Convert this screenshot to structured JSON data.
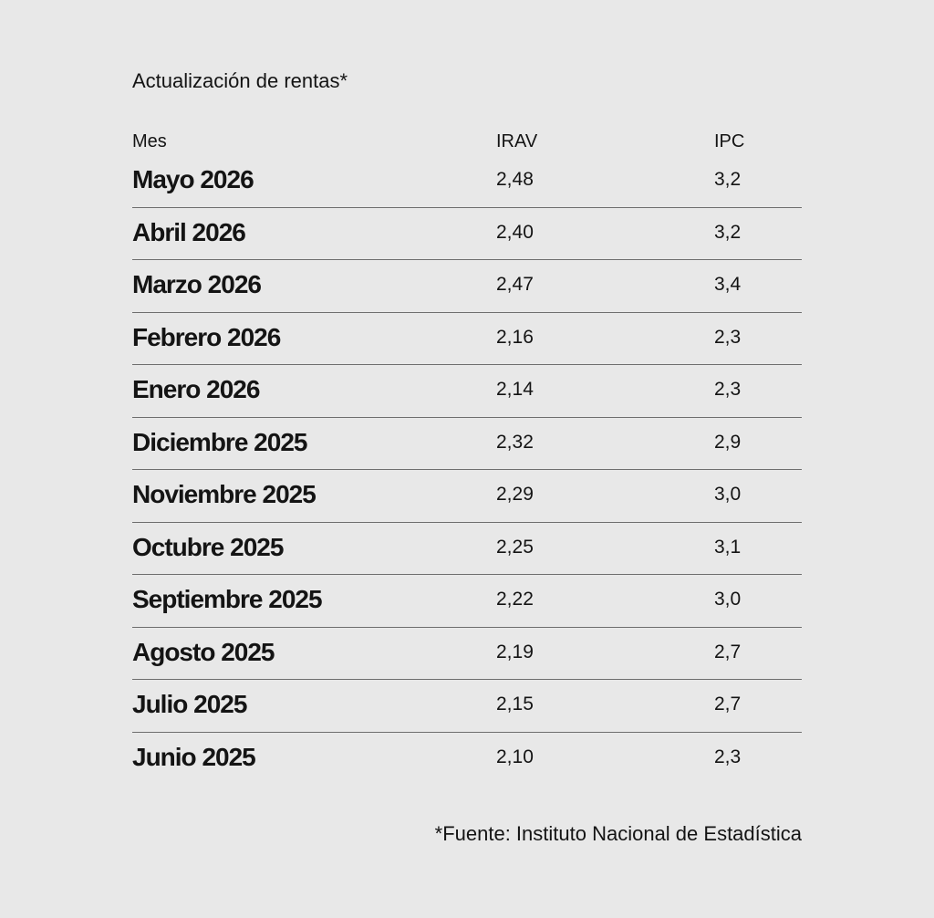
{
  "title": "Actualización de rentas*",
  "table": {
    "headers": {
      "month": "Mes",
      "irav": "IRAV",
      "ipc": "IPC"
    },
    "rows": [
      {
        "month": "Mayo 2026",
        "irav": "2,48",
        "ipc": "3,2"
      },
      {
        "month": "Abril 2026",
        "irav": "2,40",
        "ipc": "3,2"
      },
      {
        "month": "Marzo 2026",
        "irav": "2,47",
        "ipc": "3,4"
      },
      {
        "month": "Febrero 2026",
        "irav": "2,16",
        "ipc": "2,3"
      },
      {
        "month": "Enero 2026",
        "irav": "2,14",
        "ipc": "2,3"
      },
      {
        "month": "Diciembre 2025",
        "irav": "2,32",
        "ipc": "2,9"
      },
      {
        "month": "Noviembre 2025",
        "irav": "2,29",
        "ipc": "3,0"
      },
      {
        "month": "Octubre 2025",
        "irav": "2,25",
        "ipc": "3,1"
      },
      {
        "month": "Septiembre 2025",
        "irav": "2,22",
        "ipc": "3,0"
      },
      {
        "month": "Agosto 2025",
        "irav": "2,19",
        "ipc": "2,7"
      },
      {
        "month": "Julio 2025",
        "irav": "2,15",
        "ipc": "2,7"
      },
      {
        "month": "Junio 2025",
        "irav": "2,10",
        "ipc": "2,3"
      }
    ]
  },
  "source": "*Fuente: Instituto Nacional de Estadística",
  "colors": {
    "background": "#e8e8e8",
    "text": "#141414",
    "divider": "#6e6e6e"
  }
}
